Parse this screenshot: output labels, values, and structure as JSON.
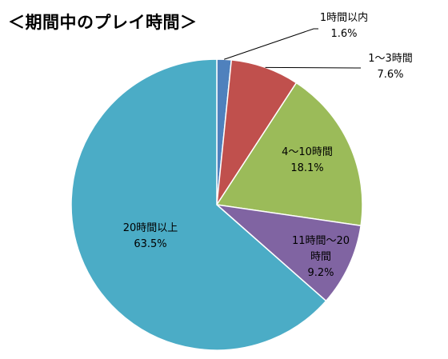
{
  "chart_data": {
    "type": "pie",
    "title": "＜期間中のプレイ時間＞",
    "slices": [
      {
        "name": "1時間以内",
        "value": 1.6,
        "label": "1.6%",
        "color": "#4F81BD"
      },
      {
        "name": "1～3時間",
        "value": 7.6,
        "label": "7.6%",
        "color": "#C0504D"
      },
      {
        "name": "4～10時間",
        "value": 18.1,
        "label": "18.1%",
        "color": "#9BBB59"
      },
      {
        "name": "11時間～20時間",
        "value": 9.2,
        "label": "9.2%",
        "color": "#8064A2"
      },
      {
        "name": "20時間以上",
        "value": 63.5,
        "label": "63.5%",
        "color": "#4BACC6"
      }
    ],
    "start_angle": "12 o'clock",
    "direction": "clockwise",
    "legend": "none",
    "labels": "data labels with leader lines for small slices"
  }
}
